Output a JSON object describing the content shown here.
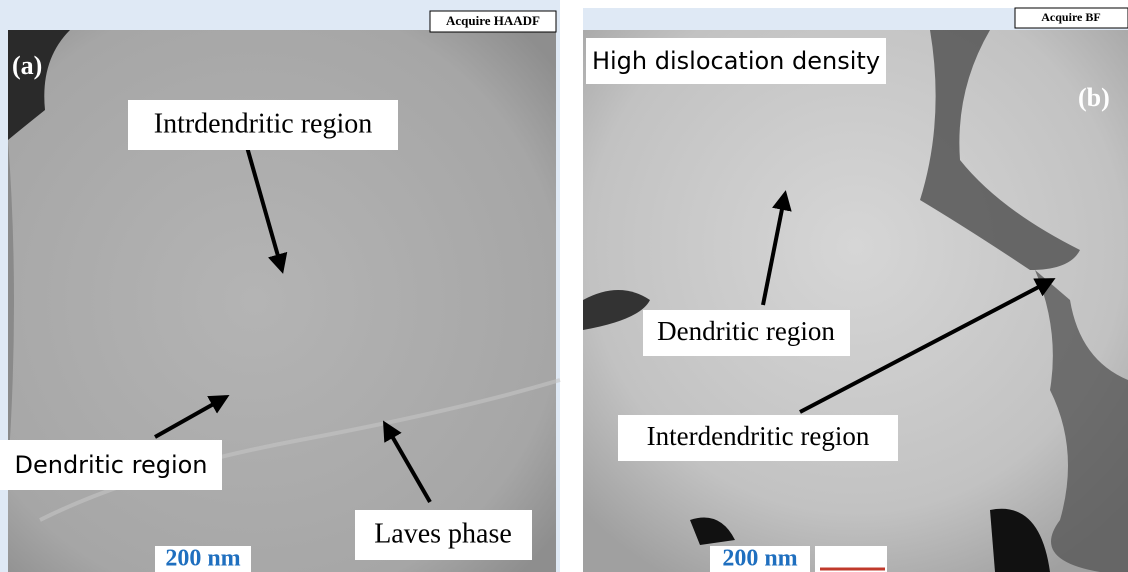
{
  "panels": [
    {
      "mode": "Acquire HAADF",
      "label": "(a)",
      "annotations": [
        "Intrdendritic region",
        "Dendritic region",
        "Laves phase"
      ],
      "scale_bar": "200 nm"
    },
    {
      "mode": "Acquire BF",
      "label": "(b)",
      "annotations": [
        "High dislocation density",
        "Dendritic region",
        "Interdendritic region"
      ],
      "scale_bar": "200 nm"
    }
  ]
}
